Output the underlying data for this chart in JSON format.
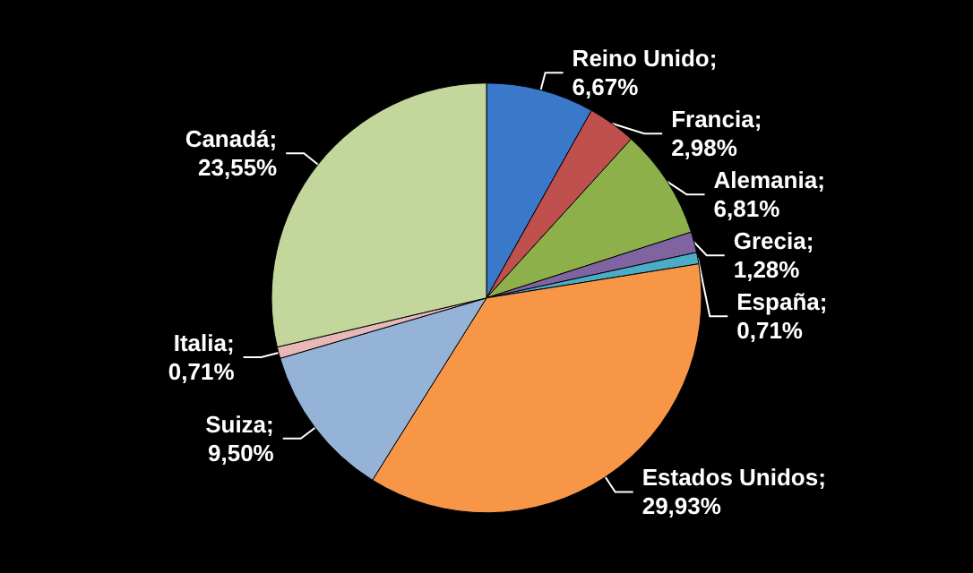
{
  "chart_data": {
    "type": "pie",
    "categories": [
      "Reino Unido",
      "Francia",
      "Alemania",
      "Grecia",
      "España",
      "Estados Unidos",
      "Suiza",
      "Italia",
      "Canadá"
    ],
    "values": [
      6.67,
      2.98,
      6.81,
      1.28,
      0.71,
      29.93,
      9.5,
      0.71,
      23.55
    ],
    "value_labels": [
      "; 6,67%",
      "; 2,98%",
      "; 6,81%",
      "; 1,28%",
      "; 0,71%",
      "; 29,93%",
      "; 9,50%",
      "; 0,71%",
      "; 23,55%"
    ],
    "colors": [
      "#3a78c9",
      "#c0504d",
      "#8db04a",
      "#8064a2",
      "#4bacc6",
      "#f79646",
      "#95b3d7",
      "#e6b9b8",
      "#c3d69b"
    ],
    "legend": false
  }
}
